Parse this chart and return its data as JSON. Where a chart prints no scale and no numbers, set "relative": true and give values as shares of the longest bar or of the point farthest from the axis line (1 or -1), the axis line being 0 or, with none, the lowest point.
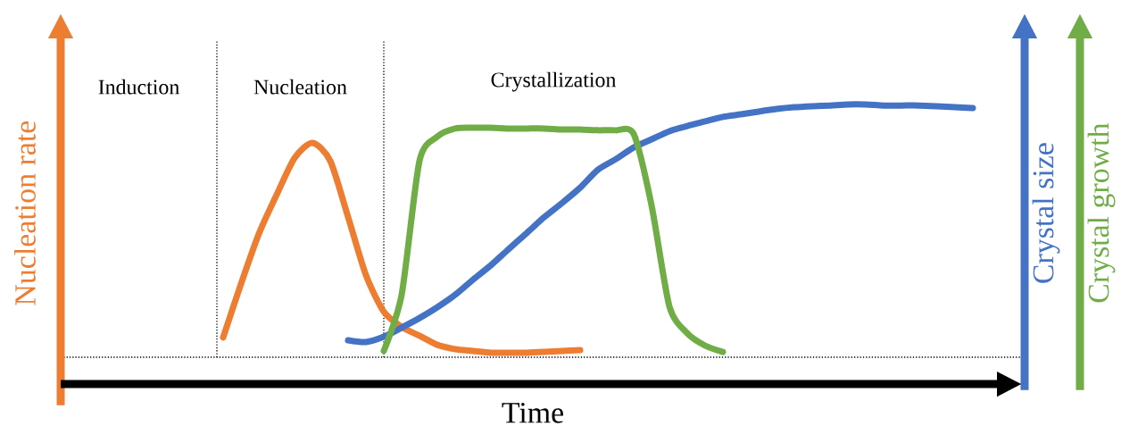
{
  "chart_data": {
    "type": "line",
    "relative": true,
    "xlabel": "Time",
    "ylabel": "Nucleation rate",
    "y2label": "Crystal size",
    "y3label": "Crystal growth",
    "annotations": [
      "Induction",
      "Nucleation",
      "Crystallization"
    ],
    "categories": [
      null,
      null,
      null,
      null,
      null,
      null,
      null,
      null,
      null,
      null,
      null,
      null,
      null,
      null,
      null,
      null,
      null,
      null,
      null,
      null,
      null,
      null,
      null,
      null,
      null,
      null,
      null,
      null,
      null,
      null,
      null,
      null,
      null,
      null,
      null,
      null,
      null,
      null,
      null,
      null,
      null,
      null,
      null,
      null,
      null,
      null,
      null,
      null,
      null,
      null,
      null,
      null
    ],
    "series": [
      {
        "color": "#ed7d31",
        "values": [
          null,
          null,
          null,
          null,
          null,
          null,
          null,
          null,
          null,
          0.078,
          0.29,
          0.488,
          0.643,
          0.788,
          0.848,
          0.777,
          0.555,
          0.325,
          0.18,
          0.12,
          0.085,
          0.049,
          0.032,
          0.025,
          0.018,
          0.018,
          0.018,
          0.021,
          0.025,
          0.028,
          null,
          null,
          null,
          null,
          null,
          null,
          null,
          null,
          null,
          null,
          null,
          null,
          null,
          null,
          null,
          null,
          null,
          null,
          null,
          null,
          null,
          null
        ]
      },
      {
        "color": "#4472c4",
        "values": [
          null,
          null,
          null,
          null,
          null,
          null,
          null,
          null,
          null,
          null,
          null,
          null,
          null,
          null,
          null,
          null,
          0.067,
          0.06,
          0.081,
          0.117,
          0.155,
          0.198,
          0.247,
          0.307,
          0.364,
          0.428,
          0.491,
          0.555,
          0.611,
          0.671,
          0.742,
          0.784,
          0.83,
          0.862,
          0.894,
          0.915,
          0.933,
          0.951,
          0.961,
          0.972,
          0.982,
          0.989,
          0.993,
          0.996,
          1.0,
          1.0,
          0.996,
          0.996,
          0.996,
          0.993,
          0.989,
          0.986
        ]
      },
      {
        "color": "#70ad47",
        "values": [
          null,
          null,
          null,
          null,
          null,
          null,
          null,
          null,
          null,
          null,
          null,
          null,
          null,
          null,
          null,
          null,
          null,
          null,
          0.025,
          0.247,
          0.777,
          0.873,
          0.905,
          0.908,
          0.908,
          0.905,
          0.905,
          0.905,
          0.901,
          0.901,
          0.898,
          0.898,
          0.883,
          0.601,
          0.201,
          0.095,
          0.046,
          0.021,
          null,
          null,
          null,
          null,
          null,
          null,
          null,
          null,
          null,
          null,
          null,
          null,
          null,
          null
        ]
      }
    ]
  }
}
